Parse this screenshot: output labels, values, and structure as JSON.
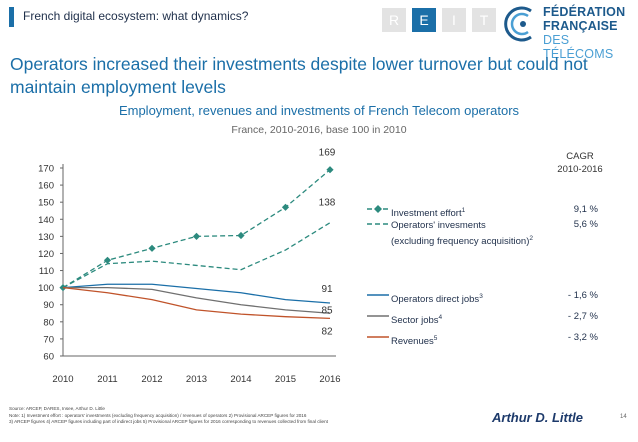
{
  "header": {
    "title": "French digital ecosystem: what dynamics?",
    "nav": [
      "R",
      "E",
      "I",
      "T"
    ],
    "active": "E"
  },
  "logo": {
    "line1": "FÉDÉRATION",
    "line2": "FRANÇAISE",
    "line3": "DES TÉLÉCOMS"
  },
  "slide": {
    "title": "Operators increased their investments despite lower turnover but could not maintain employment levels"
  },
  "chart_data": {
    "type": "line",
    "title": "Employment, revenues and investments of French Telecom operators",
    "subtitle": "France, 2010-2016, base 100 in 2010",
    "x": [
      "2010",
      "2011",
      "2012",
      "2013",
      "2014",
      "2015",
      "2016"
    ],
    "ylim": [
      60,
      170
    ],
    "yticks": [
      60,
      70,
      80,
      90,
      100,
      110,
      120,
      130,
      140,
      150,
      160,
      170
    ],
    "series": [
      {
        "name": "Investment effort",
        "sup": "1",
        "values": [
          100,
          116,
          123,
          130,
          130.5,
          147,
          169
        ],
        "color": "#2c8a7e",
        "dash": true,
        "marker": "diamond",
        "cagr": "9,1 %",
        "end_label": "169"
      },
      {
        "name": "Operators' invesments",
        "name2": "(excluding frequency acquisition)",
        "sup": "2",
        "values": [
          100,
          114,
          115.5,
          113,
          110.5,
          122,
          138
        ],
        "color": "#2c8a7e",
        "dash": true,
        "marker": "none",
        "cagr": "5,6 %",
        "end_label": "138"
      },
      {
        "name": "Operators direct jobs",
        "sup": "3",
        "values": [
          100,
          102,
          102,
          99.5,
          97,
          93,
          91
        ],
        "color": "#1b6fa8",
        "dash": false,
        "marker": "none",
        "cagr": "- 1,6 %",
        "end_label": "91"
      },
      {
        "name": "Sector jobs",
        "sup": "4",
        "values": [
          100,
          100,
          99,
          94,
          90,
          87,
          85
        ],
        "color": "#707070",
        "dash": false,
        "marker": "none",
        "cagr": "- 2,7 %",
        "end_label": "85"
      },
      {
        "name": "Revenues",
        "sup": "5",
        "values": [
          100,
          97,
          93,
          87,
          84.5,
          83,
          82
        ],
        "color": "#c0532a",
        "dash": false,
        "marker": "none",
        "cagr": "- 3,2 %",
        "end_label": "82"
      }
    ],
    "cagr_header": "CAGR",
    "cagr_period": "2010-2016"
  },
  "footer": {
    "source": "Source: ARCEP, DARES, Insee, Arthur D. Little",
    "note1": "Note: 1) Investment effort : operators' investments (excluding frequency acquisition) / revenues of operators 2) Provisional ARCEP figures for 2016",
    "note2": "3) ARCEP figures 4) ARCEP figures including part of indirect jobs 5) Provisional ARCEP figures for 2016 corresponding to revenues collected from final client",
    "brand": "Arthur D. Little",
    "page": "14"
  }
}
